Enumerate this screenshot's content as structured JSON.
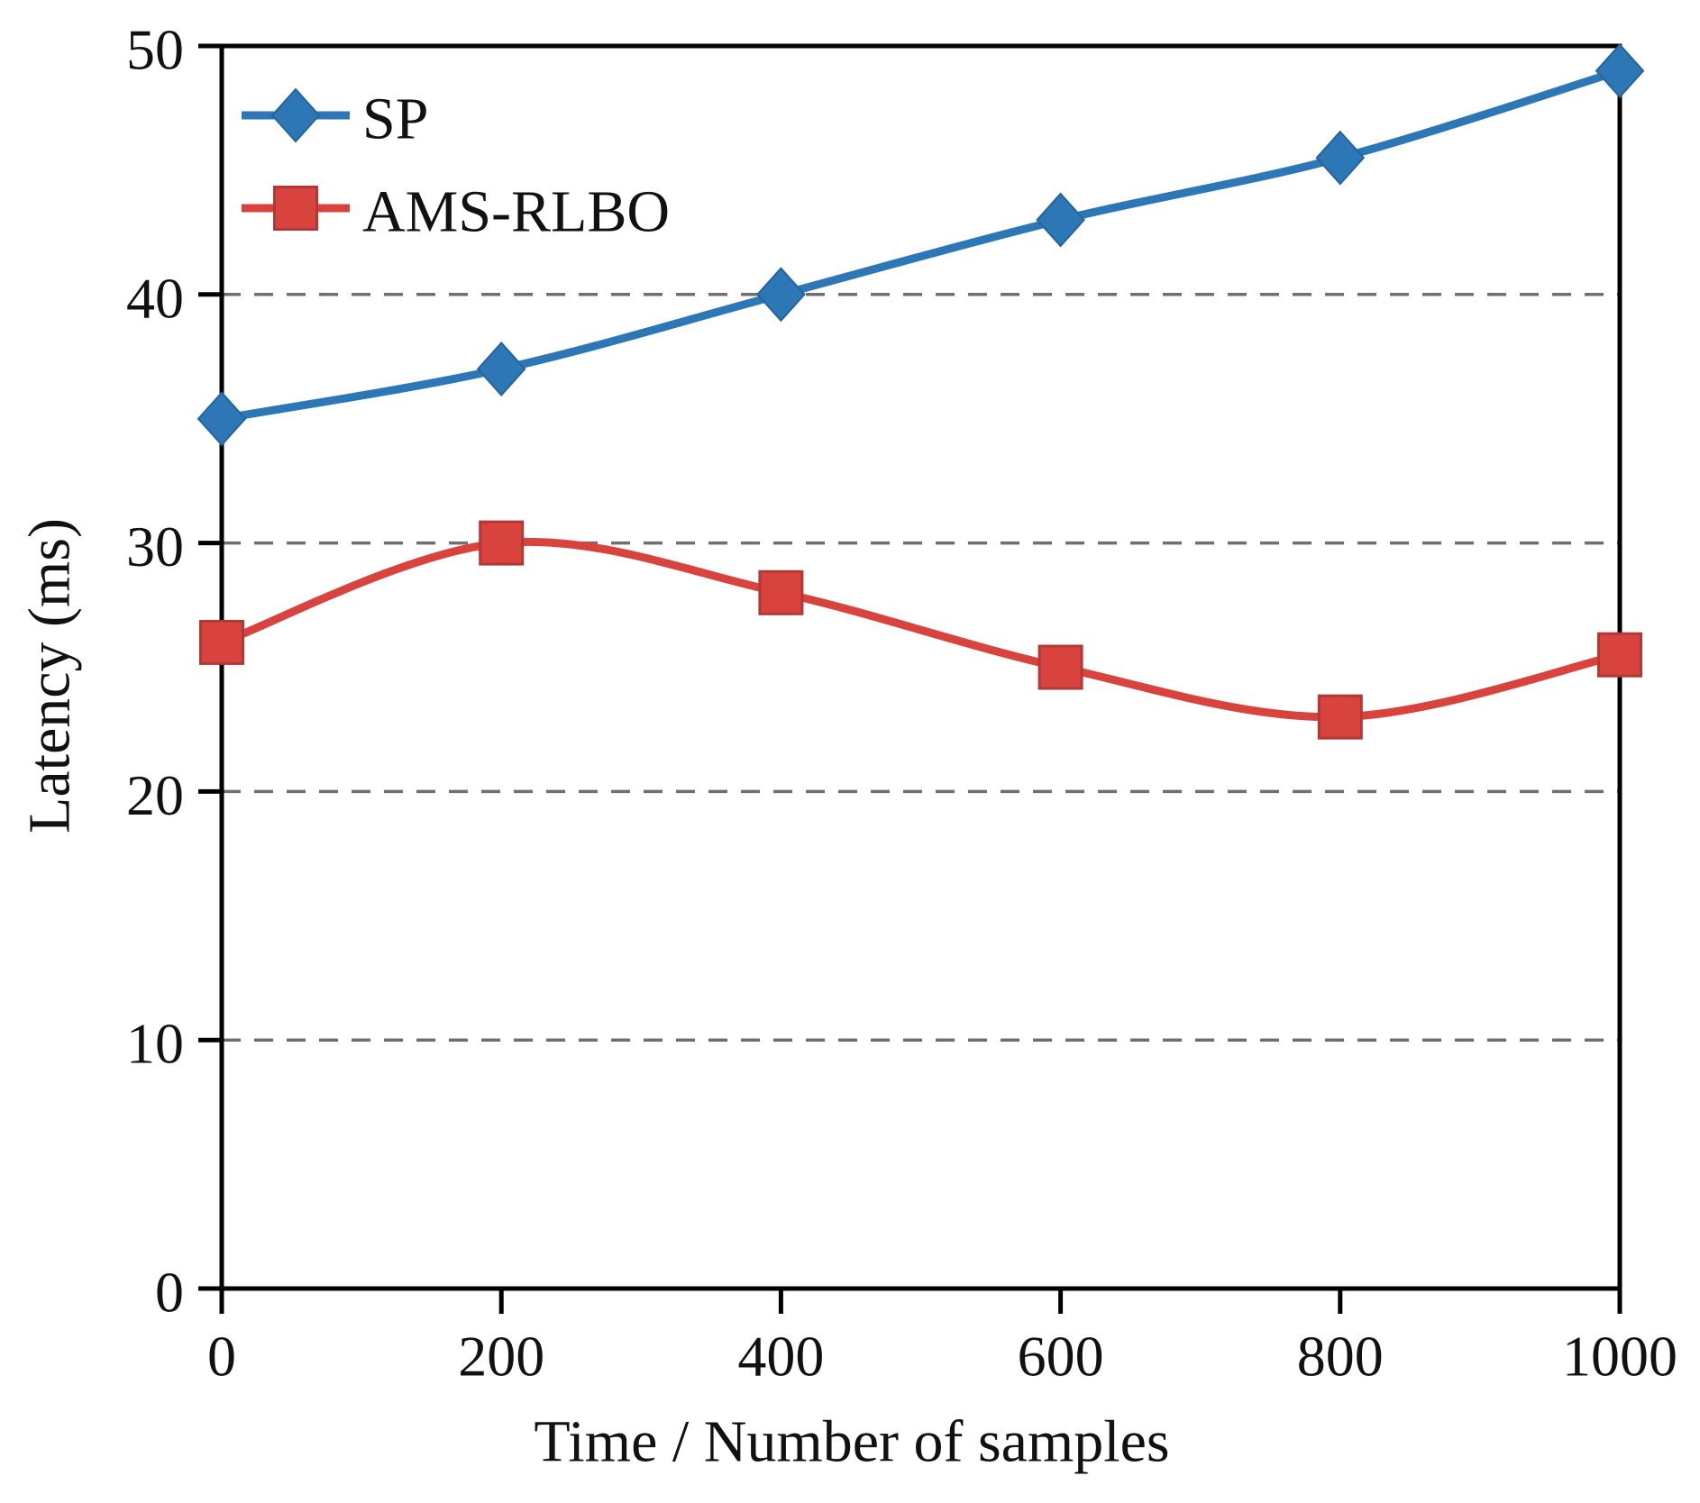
{
  "chart_data": {
    "type": "line",
    "title": "",
    "xlabel": "Time / Number of samples",
    "ylabel": "Latency (ms)",
    "x": [
      0,
      200,
      400,
      600,
      800,
      1000
    ],
    "series": [
      {
        "name": "SP",
        "values": [
          35,
          37,
          40,
          43,
          45.5,
          49
        ],
        "color": "#2E77B6",
        "marker": "diamond",
        "marker_stroke": "#24649C"
      },
      {
        "name": "AMS-RLBO",
        "values": [
          26,
          30,
          28,
          25,
          23,
          25.5
        ],
        "color": "#D8433E",
        "marker": "square",
        "marker_stroke": "#B23835"
      }
    ],
    "xlim": [
      0,
      1000
    ],
    "ylim": [
      0,
      50
    ],
    "xticks": [
      0,
      200,
      400,
      600,
      800,
      1000
    ],
    "yticks": [
      0,
      10,
      20,
      30,
      40,
      50
    ],
    "grid": {
      "y_values": [
        10,
        20,
        30,
        40
      ],
      "color": "#6F6F6F",
      "dash": [
        21,
        15
      ]
    },
    "legend_position": "top-left",
    "frame_color": "#000000",
    "smooth": true
  }
}
